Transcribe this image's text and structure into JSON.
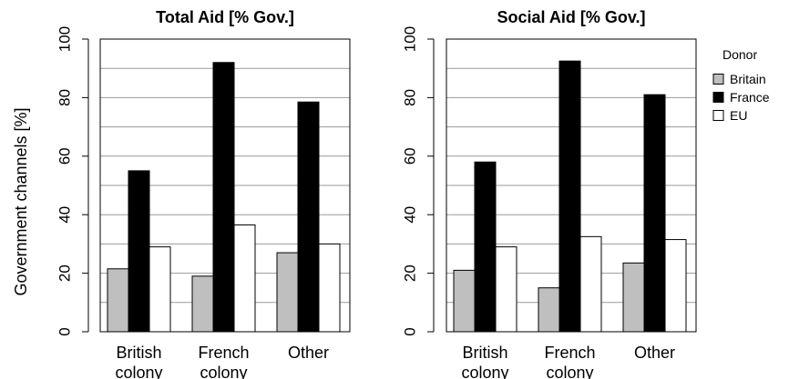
{
  "chart_data": [
    {
      "type": "bar",
      "title": "Total Aid [% Gov.]",
      "ylabel": "Government channels [%]",
      "ylim": [
        0,
        100
      ],
      "yticks": [
        "0",
        "20",
        "40",
        "60",
        "80",
        "100"
      ],
      "categories": [
        [
          "British",
          "colony"
        ],
        [
          "French",
          "colony"
        ],
        [
          "Other"
        ]
      ],
      "series": [
        {
          "name": "Britain",
          "color": "#bfbfbf",
          "values": [
            21.5,
            19,
            27
          ]
        },
        {
          "name": "France",
          "color": "#000000",
          "values": [
            55,
            92,
            78.5
          ]
        },
        {
          "name": "EU",
          "color": "#ffffff",
          "values": [
            29,
            36.5,
            30
          ]
        }
      ],
      "grid": "horizontal"
    },
    {
      "type": "bar",
      "title": "Social Aid [% Gov.]",
      "ylabel": "",
      "ylim": [
        0,
        100
      ],
      "yticks": [
        "0",
        "20",
        "40",
        "60",
        "80",
        "100"
      ],
      "categories": [
        [
          "British",
          "colony"
        ],
        [
          "French",
          "colony"
        ],
        [
          "Other"
        ]
      ],
      "series": [
        {
          "name": "Britain",
          "color": "#bfbfbf",
          "values": [
            21,
            15,
            23.5
          ]
        },
        {
          "name": "France",
          "color": "#000000",
          "values": [
            58,
            92.5,
            81
          ]
        },
        {
          "name": "EU",
          "color": "#ffffff",
          "values": [
            29,
            32.5,
            31.5
          ]
        }
      ],
      "grid": "horizontal"
    }
  ],
  "legend": {
    "title": "Donor",
    "placement": "right",
    "items": [
      {
        "label": "Britain",
        "color": "#bfbfbf"
      },
      {
        "label": "France",
        "color": "#000000"
      },
      {
        "label": "EU",
        "color": "#ffffff"
      }
    ]
  }
}
